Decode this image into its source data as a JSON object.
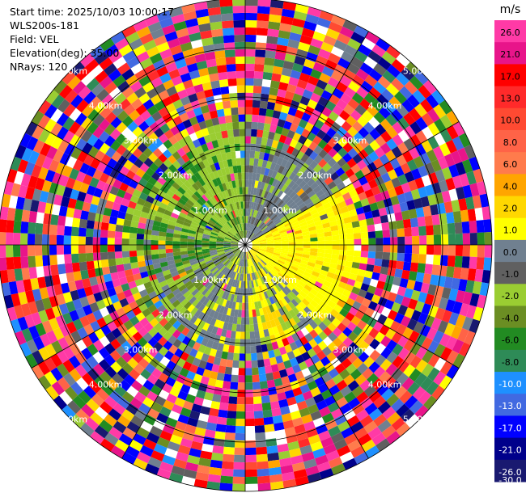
{
  "header": {
    "start_time": "Start time: 2025/10/03 10:00:17",
    "instrument": "WLS200s-181",
    "field": "Field: VEL",
    "elevation": "Elevation(deg): 35.00",
    "nrays": "NRays: 120"
  },
  "chart_data": {
    "type": "heatmap",
    "projection": "polar",
    "n_rays": 120,
    "range_rings_km": [
      1,
      2,
      3,
      4,
      5
    ],
    "range_ring_labels": [
      "1.00km",
      "2.00km",
      "3.00km",
      "4.00km",
      "5.00km"
    ],
    "max_range_km": 5.0,
    "spokes_deg": [
      0,
      30,
      60,
      90,
      120,
      150,
      180,
      210,
      240,
      270,
      300,
      330
    ],
    "colorbar": {
      "unit": "m/s",
      "tick_labels": [
        "26.0",
        "21.0",
        "17.0",
        "13.0",
        "10.0",
        "8.0",
        "6.0",
        "4.0",
        "2.0",
        "1.0",
        "0.0",
        "-1.0",
        "-2.0",
        "-4.0",
        "-6.0",
        "-8.0",
        "-10.0",
        "-13.0",
        "-17.0",
        "-21.0",
        "-26.0",
        "-30.0"
      ],
      "colors": [
        "#ff3aa6",
        "#e8158a",
        "#ff0000",
        "#ff2a2a",
        "#ff4a32",
        "#ff6347",
        "#ff7b4c",
        "#ffa500",
        "#ffd700",
        "#ffff00",
        "#708090",
        "#606060",
        "#9acd32",
        "#6b8e23",
        "#228b22",
        "#2e8b57",
        "#1e90ff",
        "#4169e1",
        "#0000ff",
        "#00008b",
        "#191970"
      ]
    },
    "inner_field": {
      "north_west": "light green",
      "north_east": "slate gray",
      "east": "yellow",
      "south": "slate gray / yellow",
      "west": "green"
    }
  }
}
